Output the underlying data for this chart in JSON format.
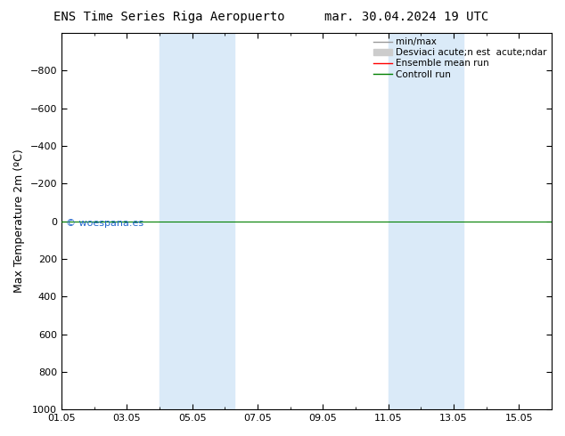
{
  "title_left": "ENS Time Series Riga Aeropuerto",
  "title_right": "mar. 30.04.2024 19 UTC",
  "ylabel": "Max Temperature 2m (ºC)",
  "watermark": "© woespana.es",
  "ylim_bottom": 1000,
  "ylim_top": -1000,
  "yticks": [
    -800,
    -600,
    -400,
    -200,
    0,
    200,
    400,
    600,
    800,
    1000
  ],
  "xtick_labels": [
    "01.05",
    "03.05",
    "05.05",
    "07.05",
    "09.05",
    "11.05",
    "13.05",
    "15.05"
  ],
  "xtick_positions": [
    0,
    2,
    4,
    6,
    8,
    10,
    12,
    14
  ],
  "shaded_bands": [
    {
      "xmin": 3.0,
      "xmax": 5.3
    },
    {
      "xmin": 10.0,
      "xmax": 12.3
    }
  ],
  "band_color": "#daeaf8",
  "legend_items": [
    {
      "label": "min/max",
      "color": "#999999",
      "lw": 1.0,
      "style": "-",
      "type": "line"
    },
    {
      "label": "Desviaci acute;n est  acute;ndar",
      "color": "#cccccc",
      "lw": 6,
      "style": "-",
      "type": "rect"
    },
    {
      "label": "Ensemble mean run",
      "color": "red",
      "lw": 1.0,
      "style": "-",
      "type": "line"
    },
    {
      "label": "Controll run",
      "color": "green",
      "lw": 1.0,
      "style": "-",
      "type": "line"
    }
  ],
  "background_color": "white",
  "watermark_color": "#2266cc",
  "line_green_y": 0.0,
  "title_fontsize": 10,
  "legend_fontsize": 7.5,
  "ylabel_fontsize": 9,
  "tick_labelsize": 8
}
